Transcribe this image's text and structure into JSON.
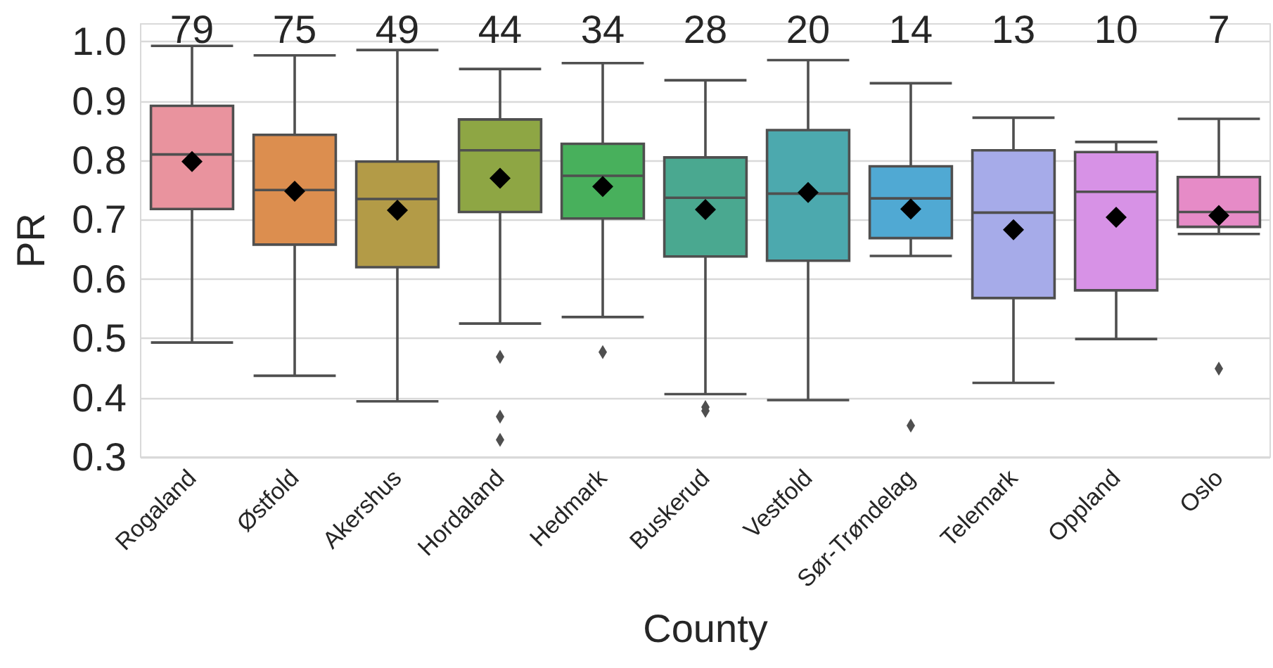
{
  "chart_data": {
    "type": "box",
    "xlabel": "County",
    "ylabel": "PR",
    "categories": [
      "Rogaland",
      "Østfold",
      "Akershus",
      "Hordaland",
      "Hedmark",
      "Buskerud",
      "Vestfold",
      "Sør-Trøndelag",
      "Telemark",
      "Oppland",
      "Oslo"
    ],
    "colors": [
      "#e9939e",
      "#dc8e4f",
      "#b39b47",
      "#8ea644",
      "#48b05c",
      "#4aa890",
      "#4ca9ae",
      "#50a9d3",
      "#a6abe9",
      "#d792e6",
      "#e68bc7"
    ],
    "boxes": [
      {
        "low": 0.493,
        "q1": 0.718,
        "median": 0.81,
        "q3": 0.892,
        "high": 0.993,
        "mean": 0.798
      },
      {
        "low": 0.437,
        "q1": 0.658,
        "median": 0.75,
        "q3": 0.843,
        "high": 0.977,
        "mean": 0.748
      },
      {
        "low": 0.394,
        "q1": 0.62,
        "median": 0.735,
        "q3": 0.798,
        "high": 0.986,
        "mean": 0.716
      },
      {
        "low": 0.525,
        "q1": 0.713,
        "median": 0.817,
        "q3": 0.869,
        "high": 0.954,
        "mean": 0.77,
        "outliers": [
          0.469,
          0.368,
          0.329
        ]
      },
      {
        "low": 0.536,
        "q1": 0.702,
        "median": 0.774,
        "q3": 0.828,
        "high": 0.964,
        "mean": 0.756,
        "outliers": [
          0.477
        ]
      },
      {
        "low": 0.406,
        "q1": 0.638,
        "median": 0.737,
        "q3": 0.805,
        "high": 0.935,
        "mean": 0.717,
        "outliers": [
          0.384,
          0.378
        ]
      },
      {
        "low": 0.396,
        "q1": 0.631,
        "median": 0.744,
        "q3": 0.851,
        "high": 0.969,
        "mean": 0.746
      },
      {
        "low": 0.639,
        "q1": 0.669,
        "median": 0.736,
        "q3": 0.79,
        "high": 0.93,
        "mean": 0.718,
        "outliers": [
          0.353
        ]
      },
      {
        "low": 0.425,
        "q1": 0.568,
        "median": 0.712,
        "q3": 0.817,
        "high": 0.872,
        "mean": 0.683
      },
      {
        "low": 0.499,
        "q1": 0.581,
        "median": 0.747,
        "q3": 0.814,
        "high": 0.831,
        "mean": 0.704
      },
      {
        "low": 0.676,
        "q1": 0.688,
        "median": 0.713,
        "q3": 0.772,
        "high": 0.87,
        "mean": 0.707,
        "outliers": [
          0.449
        ]
      }
    ],
    "ylim": [
      0.3,
      1.03
    ],
    "yticks": [
      0.3,
      0.4,
      0.5,
      0.6,
      0.7,
      0.8,
      0.9,
      {
        "value": 1.0,
        "label": "1.0"
      }
    ],
    "grid": "y",
    "annotations": [
      "79",
      "75",
      "49",
      "44",
      "34",
      "28",
      "20",
      "14",
      "13",
      "10",
      "7"
    ]
  }
}
